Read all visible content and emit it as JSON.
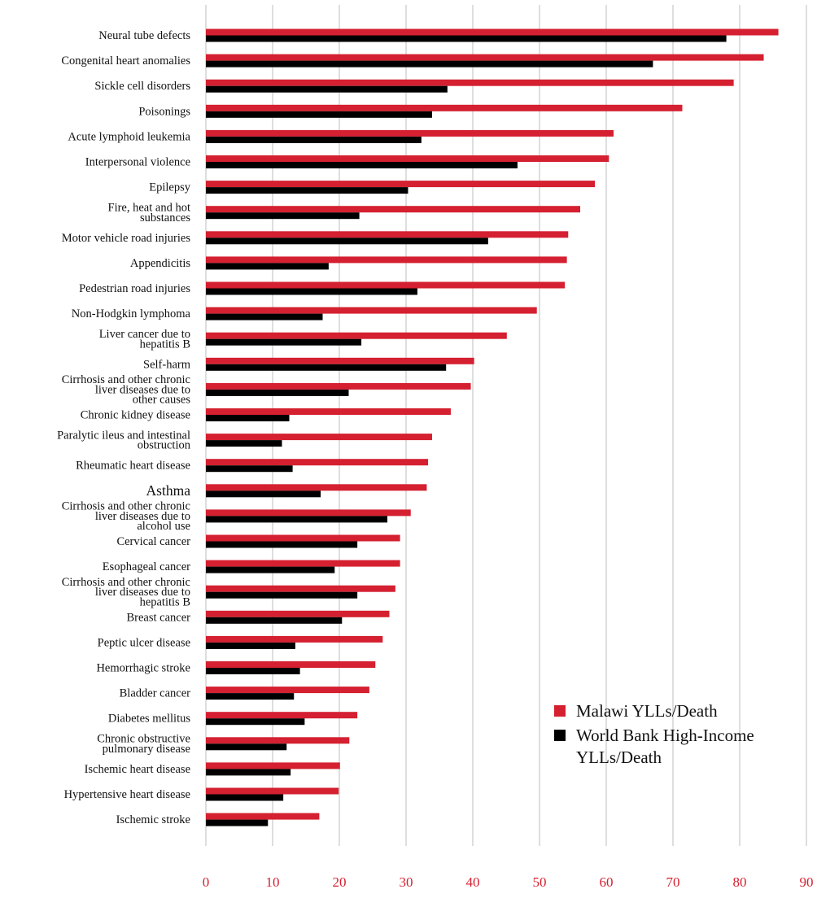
{
  "chart_data": {
    "type": "bar",
    "orientation": "horizontal",
    "categories": [
      "Neural tube defects",
      "Congenital heart anomalies",
      "Sickle cell disorders",
      "Poisonings",
      "Acute lymphoid leukemia",
      "Interpersonal violence",
      "Epilepsy",
      "Fire, heat and hot substances",
      "Motor vehicle road injuries",
      "Appendicitis",
      "Pedestrian road injuries",
      "Non-Hodgkin lymphoma",
      "Liver cancer due to hepatitis B",
      "Self-harm",
      "Cirrhosis and other chronic liver diseases due to other causes",
      "Chronic kidney disease",
      "Paralytic ileus and intestinal obstruction",
      "Rheumatic heart disease",
      "Asthma",
      "Cirrhosis and other chronic liver diseases due to alcohol use",
      "Cervical cancer",
      "Esophageal cancer",
      "Cirrhosis and other chronic liver diseases due to hepatitis B",
      "Breast cancer",
      "Peptic ulcer disease",
      "Hemorrhagic stroke",
      "Bladder cancer",
      "Diabetes mellitus",
      "Chronic obstructive pulmonary disease",
      "Ischemic heart disease",
      "Hypertensive heart disease",
      "Ischemic stroke"
    ],
    "category_label_lines": [
      [
        "Neural tube defects"
      ],
      [
        "Congenital heart anomalies"
      ],
      [
        "Sickle cell disorders"
      ],
      [
        "Poisonings"
      ],
      [
        "Acute lymphoid leukemia"
      ],
      [
        "Interpersonal violence"
      ],
      [
        "Epilepsy"
      ],
      [
        "Fire, heat and hot",
        "substances"
      ],
      [
        "Motor vehicle road injuries"
      ],
      [
        "Appendicitis"
      ],
      [
        "Pedestrian road injuries"
      ],
      [
        "Non-Hodgkin lymphoma"
      ],
      [
        "Liver cancer due to",
        "hepatitis B"
      ],
      [
        "Self-harm"
      ],
      [
        "Cirrhosis and other chronic",
        "liver diseases due to",
        "other causes"
      ],
      [
        "Chronic kidney disease"
      ],
      [
        "Paralytic ileus and intestinal",
        "obstruction"
      ],
      [
        "Rheumatic heart disease"
      ],
      [
        "Asthma"
      ],
      [
        "Cirrhosis and other chronic",
        "liver diseases due to",
        "alcohol use"
      ],
      [
        "Cervical cancer"
      ],
      [
        "Esophageal cancer"
      ],
      [
        "Cirrhosis and other chronic",
        "liver diseases due to",
        "hepatitis B"
      ],
      [
        "Breast cancer"
      ],
      [
        "Peptic ulcer disease"
      ],
      [
        "Hemorrhagic stroke"
      ],
      [
        "Bladder cancer"
      ],
      [
        "Diabetes mellitus"
      ],
      [
        "Chronic obstructive",
        "pulmonary disease"
      ],
      [
        "Ischemic heart disease"
      ],
      [
        "Hypertensive heart disease"
      ],
      [
        "Ischemic stroke"
      ]
    ],
    "series": [
      {
        "name": "Malawi YLLs/Death",
        "color": "#d42030",
        "values": [
          85.8,
          83.6,
          79.1,
          71.4,
          61.1,
          60.4,
          58.3,
          56.1,
          54.3,
          54.1,
          53.8,
          49.6,
          45.1,
          40.2,
          39.7,
          36.7,
          33.9,
          33.3,
          33.1,
          30.7,
          29.1,
          29.1,
          28.4,
          27.5,
          26.5,
          25.4,
          24.5,
          22.7,
          21.5,
          20.1,
          19.9,
          17.0
        ]
      },
      {
        "name": "World Bank High-Income YLLs/Death",
        "color": "#000000",
        "values": [
          78.0,
          67.0,
          36.2,
          33.9,
          32.3,
          46.7,
          30.3,
          23.0,
          42.3,
          18.4,
          31.7,
          17.5,
          23.3,
          36.0,
          21.4,
          12.5,
          11.4,
          13.0,
          17.2,
          27.2,
          22.7,
          19.3,
          22.7,
          20.4,
          13.4,
          14.1,
          13.2,
          14.8,
          12.1,
          12.7,
          11.6,
          9.3
        ]
      }
    ],
    "x_ticks": [
      "0",
      "10",
      "20",
      "30",
      "40",
      "50",
      "60",
      "70",
      "80",
      "90"
    ],
    "xlim": [
      0,
      90
    ],
    "tick_color": "#d42030",
    "gridlines": "vertical",
    "legend": {
      "position": "bottom-right",
      "entries": [
        {
          "lines": [
            "Malawi YLLs/Death"
          ],
          "color": "#d42030"
        },
        {
          "lines": [
            "World Bank High-Income",
            "YLLs/Death"
          ],
          "color": "#000000"
        }
      ]
    }
  }
}
